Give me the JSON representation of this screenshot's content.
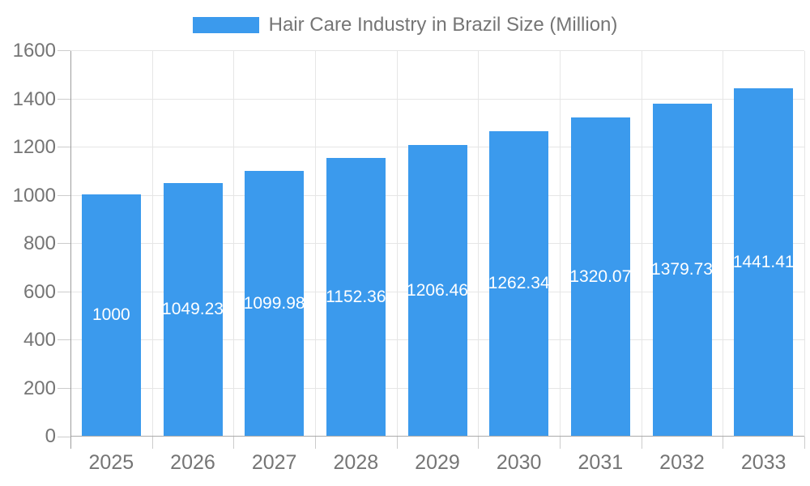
{
  "legend": {
    "series_label": "Hair Care Industry in Brazil Size (Million)"
  },
  "colors": {
    "bar": "#3B9AED",
    "grid": "#e6e6e6",
    "axis_line": "#9e9e9e",
    "baseline": "#ababab",
    "tick": "#cccccc",
    "axis_text": "#757575",
    "value_text": "#ffffff",
    "background": "#ffffff"
  },
  "chart_data": {
    "type": "bar",
    "title": "Hair Care Industry in Brazil Size (Million)",
    "xlabel": "",
    "ylabel": "",
    "categories": [
      "2025",
      "2026",
      "2027",
      "2028",
      "2029",
      "2030",
      "2031",
      "2032",
      "2033"
    ],
    "values": [
      1000,
      1049.23,
      1099.98,
      1152.36,
      1206.46,
      1262.34,
      1320.07,
      1379.73,
      1441.41
    ],
    "value_labels": [
      "1000",
      "1049.23",
      "1099.98",
      "1152.36",
      "1206.46",
      "1262.34",
      "1320.07",
      "1379.73",
      "1441.41"
    ],
    "ylim": [
      0,
      1600
    ],
    "ytick_step": 200,
    "ytick_labels": [
      "0",
      "200",
      "400",
      "600",
      "800",
      "1000",
      "1200",
      "1400",
      "1600"
    ],
    "grid": true,
    "legend_position": "top"
  }
}
